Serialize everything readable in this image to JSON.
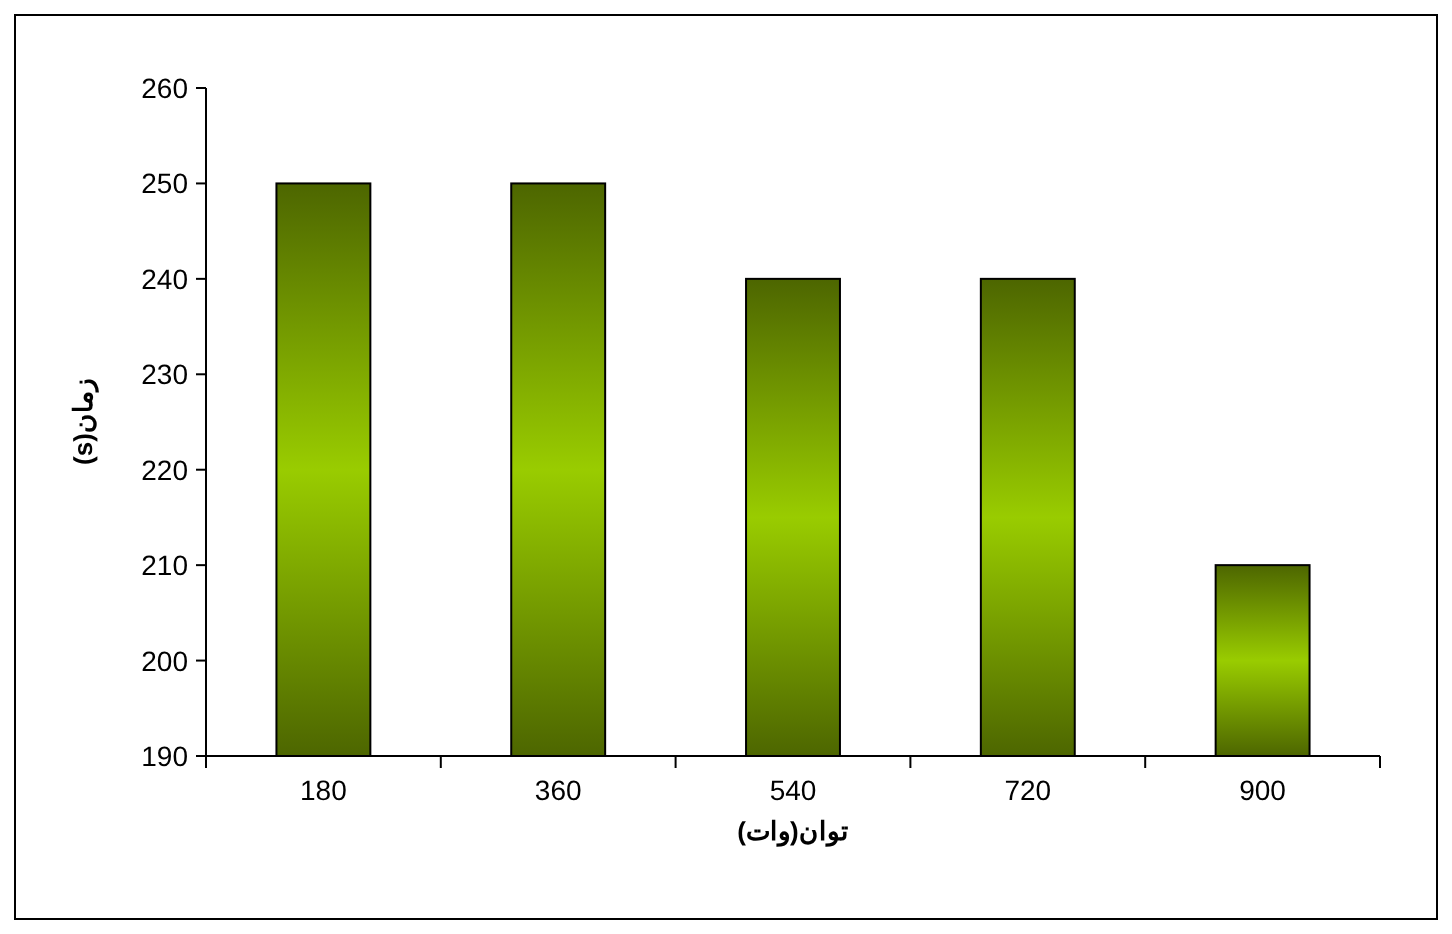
{
  "chart_data": {
    "type": "bar",
    "xlabel": "توان(وات)",
    "ylabel": "زمان(s)",
    "categories": [
      "180",
      "360",
      "540",
      "720",
      "900"
    ],
    "values": [
      250,
      250,
      240,
      240,
      210
    ],
    "color": "#99cc00",
    "ylim": [
      190,
      260
    ],
    "yticks": [
      190,
      200,
      210,
      220,
      230,
      240,
      250,
      260
    ],
    "grid": false
  }
}
